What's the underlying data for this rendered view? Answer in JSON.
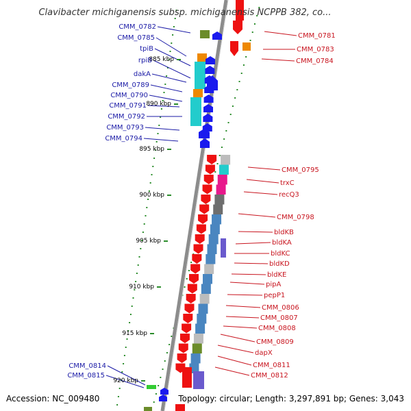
{
  "title": "Clavibacter michiganensis subsp. michiganensis NCPPB 382, co...",
  "footer": {
    "accession": "Accession: NC_009480",
    "topology": "Topology: circular; Length: 3,297,891 bp; Genes: 3,043"
  },
  "ticks": [
    "885 kbp",
    "890 kbp",
    "895 kbp",
    "900 kbp",
    "905 kbp",
    "910 kbp",
    "915 kbp",
    "920 kbp"
  ],
  "left_labels": [
    "CMM_0782",
    "CMM_0785",
    "tpiB",
    "rpiB",
    "dakA",
    "CMM_0789",
    "CMM_0790",
    "CMM_0791",
    "CMM_0792",
    "CMM_0793",
    "CMM_0794",
    "CMM_0814",
    "CMM_0815"
  ],
  "right_labels": [
    "CMM_0781",
    "CMM_0783",
    "CMM_0784",
    "CMM_0795",
    "trxC",
    "recQ3",
    "CMM_0798",
    "bldKB",
    "bldKA",
    "bldKC",
    "bldKD",
    "bldKE",
    "pipA",
    "pepP1",
    "CMM_0806",
    "CMM_0807",
    "CMM_0808",
    "CMM_0809",
    "dapX",
    "CMM_0811",
    "CMM_0812"
  ],
  "colors": {
    "forward_strand": "#1a1aee",
    "reverse_strand": "#ee1111",
    "backbone": "#8c8c8c",
    "tick": "#2a8c2a",
    "cyan": "#22cccc",
    "orange": "#ee8800",
    "olive": "#6b8c2a",
    "steelblue": "#4a86c0",
    "grey": "#bcbcbc",
    "darkgrey": "#6e6e6e",
    "magenta": "#e8198c",
    "purple": "#6a5acd"
  }
}
